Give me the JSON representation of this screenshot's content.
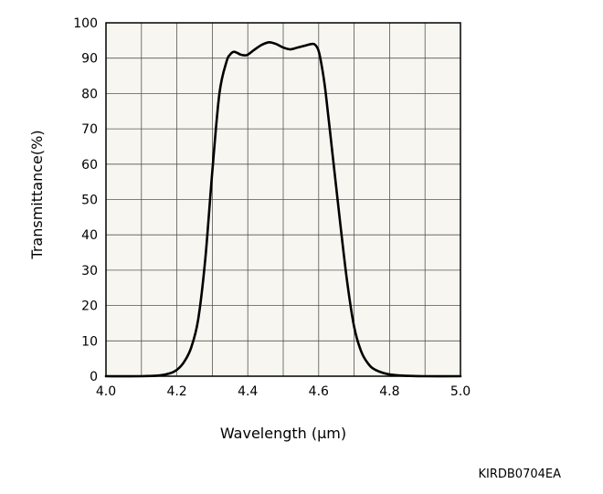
{
  "chart_data": {
    "type": "line",
    "xlabel": "Wavelength (μm)",
    "ylabel": "Transmittance(%)",
    "xlim": [
      4.0,
      5.0
    ],
    "ylim": [
      0,
      100
    ],
    "x_ticks": [
      "4.0",
      "4.2",
      "4.4",
      "4.6",
      "4.8",
      "5.0"
    ],
    "y_ticks": [
      "0",
      "10",
      "20",
      "30",
      "40",
      "50",
      "60",
      "70",
      "80",
      "90",
      "100"
    ],
    "x_grid_step": 0.1,
    "y_grid_step": 10,
    "grid": true,
    "plot_background": "#f7f6f0",
    "line_color": "#000000",
    "series": [
      {
        "x": [
          4.0,
          4.1,
          4.15,
          4.18,
          4.2,
          4.22,
          4.24,
          4.26,
          4.28,
          4.3,
          4.32,
          4.34,
          4.35,
          4.36,
          4.37,
          4.38,
          4.39,
          4.4,
          4.42,
          4.44,
          4.46,
          4.48,
          4.5,
          4.52,
          4.54,
          4.56,
          4.58,
          4.59,
          4.6,
          4.61,
          4.62,
          4.64,
          4.66,
          4.68,
          4.7,
          4.72,
          4.74,
          4.76,
          4.8,
          4.85,
          4.9,
          5.0
        ],
        "y": [
          0,
          0,
          0.2,
          0.8,
          1.8,
          4,
          8,
          16,
          33,
          58,
          80,
          89,
          91,
          91.8,
          91.5,
          91,
          90.8,
          91,
          92.5,
          93.8,
          94.5,
          94,
          93,
          92.5,
          93,
          93.5,
          94,
          93.8,
          92,
          87,
          80,
          62,
          44,
          27,
          14,
          7,
          3.5,
          1.8,
          0.5,
          0.1,
          0,
          0
        ]
      }
    ]
  },
  "figure_code": "KIRDB0704EA"
}
